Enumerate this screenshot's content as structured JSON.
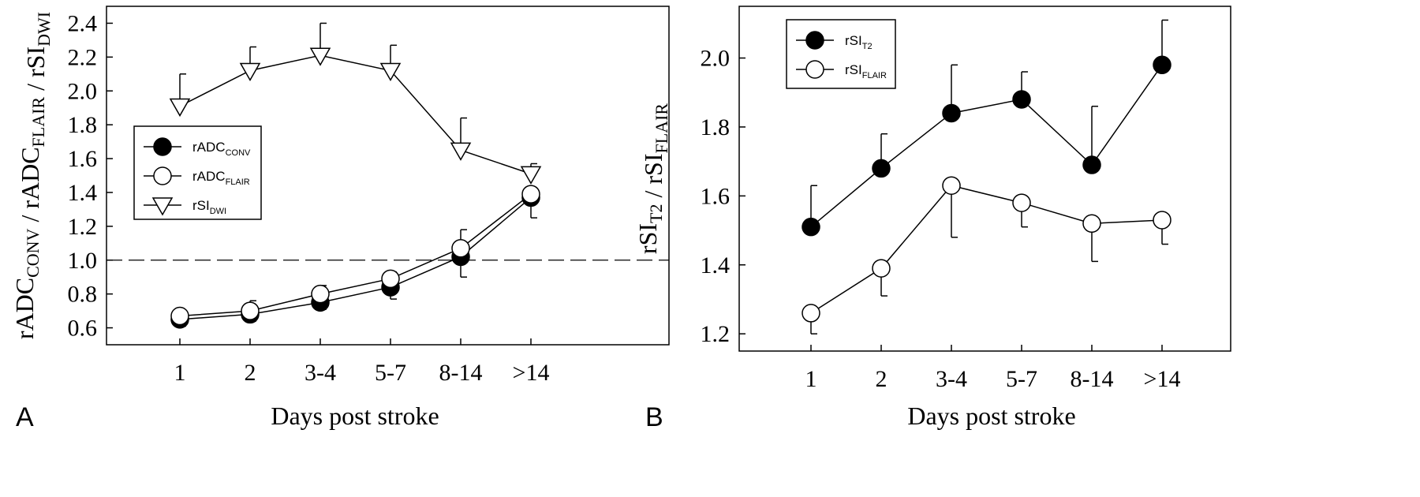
{
  "chart_data": [
    {
      "panel": "A",
      "type": "line",
      "xlabel": "Days post stroke",
      "ylabel": {
        "parts": [
          {
            "base": "rADC",
            "sub": "CONV"
          },
          {
            "base": " / rADC",
            "sub": "FLAIR"
          },
          {
            "base": " / rSI",
            "sub": "DWI"
          }
        ]
      },
      "categories": [
        "1",
        "2",
        "3-4",
        "5-7",
        "8-14",
        ">14"
      ],
      "ylim": [
        0.5,
        2.5
      ],
      "yticks": [
        "0.6",
        "0.8",
        "1.0",
        "1.2",
        "1.4",
        "1.6",
        "1.8",
        "2.0",
        "2.2",
        "2.4"
      ],
      "reference_line": {
        "y": 1.0,
        "style": "dashed"
      },
      "grid": false,
      "legend_position": "middle-left",
      "series": [
        {
          "name": {
            "base": "rADC",
            "sub": "CONV"
          },
          "marker": "filled-circle",
          "values": [
            0.65,
            0.68,
            0.75,
            0.84,
            1.02,
            1.37
          ],
          "error_low": [
            0.61,
            0.64,
            0.71,
            0.77,
            0.9,
            1.25
          ],
          "error_high": null
        },
        {
          "name": {
            "base": "rADC",
            "sub": "FLAIR"
          },
          "marker": "open-circle",
          "values": [
            0.67,
            0.7,
            0.8,
            0.89,
            1.07,
            1.39
          ],
          "error_low": null,
          "error_high": [
            0.69,
            0.76,
            0.85,
            0.93,
            1.18,
            1.42
          ]
        },
        {
          "name": {
            "base": "rSI",
            "sub": "DWI"
          },
          "marker": "open-triangle-down",
          "values": [
            1.91,
            2.12,
            2.21,
            2.12,
            1.65,
            1.51
          ],
          "error_low": null,
          "error_high": [
            2.1,
            2.26,
            2.4,
            2.27,
            1.84,
            1.57
          ]
        }
      ]
    },
    {
      "panel": "B",
      "type": "line",
      "xlabel": "Days post stroke",
      "ylabel": {
        "parts": [
          {
            "base": "rSI",
            "sub": "T2"
          },
          {
            "base": " / rSI",
            "sub": "FLAIR"
          }
        ]
      },
      "categories": [
        "1",
        "2",
        "3-4",
        "5-7",
        "8-14",
        ">14"
      ],
      "ylim": [
        1.15,
        2.15
      ],
      "yticks": [
        "1.2",
        "1.4",
        "1.6",
        "1.8",
        "2.0"
      ],
      "grid": false,
      "legend_position": "top-left",
      "series": [
        {
          "name": {
            "base": "rSI",
            "sub": "T2"
          },
          "marker": "filled-circle",
          "values": [
            1.51,
            1.68,
            1.84,
            1.88,
            1.69,
            1.98
          ],
          "error_low": null,
          "error_high": [
            1.63,
            1.78,
            1.98,
            1.96,
            1.86,
            2.11
          ]
        },
        {
          "name": {
            "base": "rSI",
            "sub": "FLAIR"
          },
          "marker": "open-circle",
          "values": [
            1.26,
            1.39,
            1.63,
            1.58,
            1.52,
            1.53
          ],
          "error_low": [
            1.2,
            1.31,
            1.48,
            1.51,
            1.41,
            1.46
          ],
          "error_high": null
        }
      ]
    }
  ]
}
